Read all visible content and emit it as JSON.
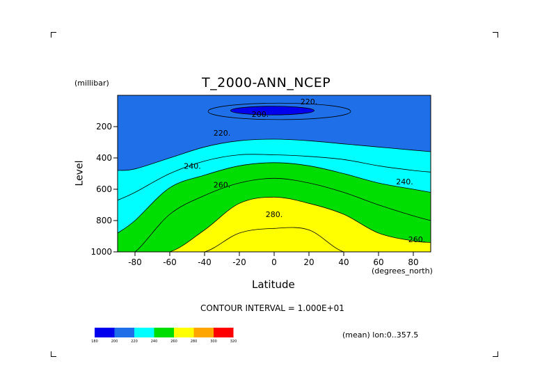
{
  "chart_data": {
    "type": "contour",
    "title": "T_2000-ANN_NCEP",
    "xlabel": "Latitude",
    "ylabel": "Level",
    "x_units": "(degrees_north)",
    "y_units": "(millibar)",
    "xlim": [
      -90,
      90
    ],
    "ylim": [
      1000,
      0
    ],
    "xticks": [
      -80,
      -60,
      -40,
      -20,
      0,
      20,
      40,
      60,
      80
    ],
    "yticks": [
      200,
      400,
      600,
      800,
      1000
    ],
    "contour_interval_text": "CONTOUR INTERVAL = 1.000E+01",
    "mean_text": "(mean) lon:0..357.5",
    "contour_labels": [
      {
        "text": "200.",
        "lat": -8,
        "level": 120
      },
      {
        "text": "220.",
        "lat": 20,
        "level": 40
      },
      {
        "text": "220.",
        "lat": -30,
        "level": 240
      },
      {
        "text": "240.",
        "lat": -47,
        "level": 450
      },
      {
        "text": "260.",
        "lat": -30,
        "level": 570
      },
      {
        "text": "280.",
        "lat": 0,
        "level": 760
      },
      {
        "text": "240.",
        "lat": 75,
        "level": 550
      },
      {
        "text": "260.",
        "lat": 82,
        "level": 920
      }
    ],
    "levels": [
      180,
      200,
      220,
      240,
      260,
      280,
      300,
      320
    ],
    "fill_colors": [
      "#0000ee",
      "#1e6fe8",
      "#00ffff",
      "#00dd00",
      "#ffff00",
      "#ffa500",
      "#ff0000"
    ],
    "lats": [
      -90,
      -80,
      -60,
      -40,
      -20,
      0,
      20,
      40,
      60,
      80,
      90
    ],
    "isolines": [
      {
        "value": 220,
        "levels": [
          480,
          470,
          400,
          330,
          290,
          280,
          290,
          310,
          330,
          350,
          360
        ]
      },
      {
        "value": 230,
        "levels": [
          670,
          620,
          500,
          420,
          380,
          380,
          390,
          410,
          450,
          480,
          490
        ]
      },
      {
        "value": 240,
        "levels": [
          880,
          800,
          590,
          510,
          450,
          430,
          450,
          500,
          560,
          600,
          620
        ]
      },
      {
        "value": 250,
        "levels": [
          1000,
          1000,
          760,
          640,
          560,
          530,
          560,
          620,
          700,
          770,
          800
        ]
      },
      {
        "value": 260,
        "levels": [
          1000,
          1000,
          1000,
          860,
          690,
          650,
          690,
          760,
          880,
          930,
          940
        ]
      },
      {
        "value": 270,
        "levels": [
          1000,
          1000,
          1000,
          1000,
          880,
          850,
          860,
          1000,
          1000,
          1000,
          1000
        ]
      }
    ],
    "cold_core": [
      {
        "value": 210,
        "lat_range": [
          -38,
          44
        ],
        "level_range": [
          50,
          155
        ]
      },
      {
        "value": 200,
        "lat_range": [
          -25,
          23
        ],
        "level_range": [
          70,
          125
        ]
      }
    ]
  }
}
